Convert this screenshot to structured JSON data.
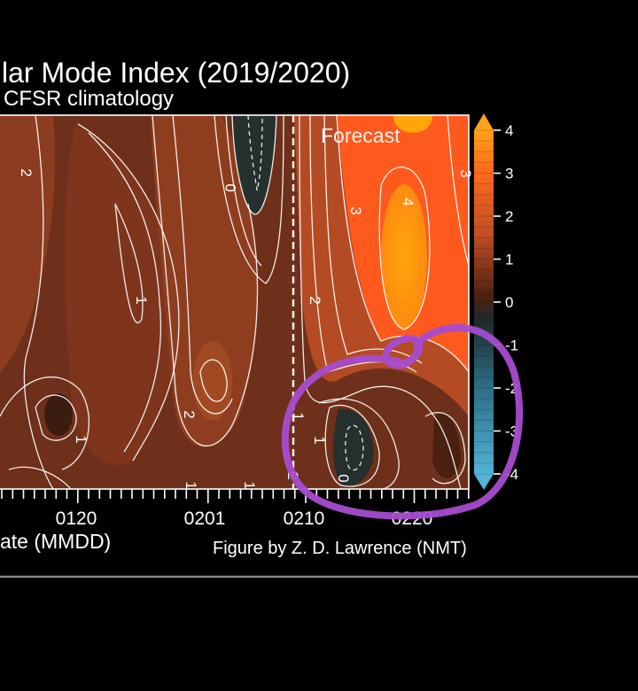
{
  "chart_data": {
    "type": "heatmap",
    "title": "lar Mode Index (2019/2020)",
    "subtitle": "CFSR climatology",
    "xlabel": "ate (MMDD)",
    "credit": "Figure by Z. D. Lawrence (NMT)",
    "annotation": "Forecast",
    "x_tick_labels": [
      "0120",
      "0201",
      "0210",
      "0220"
    ],
    "colorbar": {
      "ticks": [
        4,
        3,
        2,
        1,
        0,
        -1,
        -2,
        -3,
        -4
      ],
      "range": [
        -4,
        4
      ],
      "colors": {
        "high": "#ffa500",
        "mid_high": "#ff5e1a",
        "mid": "#d25a2c",
        "low_pos": "#5a2410",
        "zero": "#26302e",
        "neg": "#2a6a80",
        "low_neg": "#4faed0"
      }
    },
    "contour_labels": [
      {
        "value": "2"
      },
      {
        "value": "0"
      },
      {
        "value": "1"
      },
      {
        "value": "2"
      },
      {
        "value": "1"
      },
      {
        "value": "1"
      },
      {
        "value": "1"
      },
      {
        "value": "2"
      },
      {
        "value": "1"
      },
      {
        "value": "0"
      },
      {
        "value": "3"
      },
      {
        "value": "4"
      },
      {
        "value": "3"
      },
      {
        "value": "1"
      },
      {
        "value": "2"
      }
    ],
    "overlay": {
      "description_color": "#a24ec8"
    }
  }
}
